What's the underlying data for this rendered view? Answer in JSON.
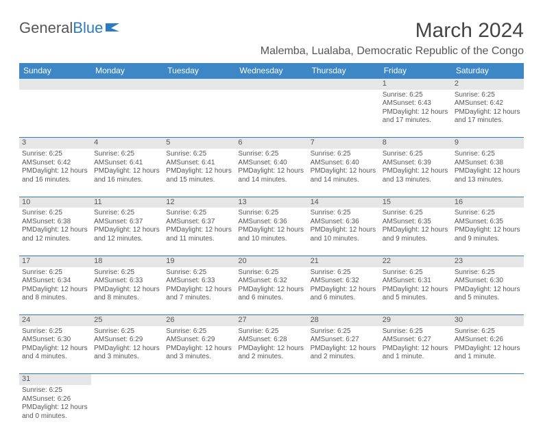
{
  "brand": {
    "part1": "General",
    "part2": "Blue"
  },
  "title": "March 2024",
  "location": "Malemba, Lualaba, Democratic Republic of the Congo",
  "weekdays": [
    "Sunday",
    "Monday",
    "Tuesday",
    "Wednesday",
    "Thursday",
    "Friday",
    "Saturday"
  ],
  "colors": {
    "header_bg": "#3d87c6",
    "header_fg": "#ffffff",
    "daynum_bg": "#e6e6e6",
    "border": "#2b7bbd",
    "text": "#555555",
    "brand_blue": "#2b7bbd"
  },
  "rows": [
    [
      null,
      null,
      null,
      null,
      null,
      {
        "n": "1",
        "sr": "6:25 AM",
        "ss": "6:43 PM",
        "dl": "12 hours and 17 minutes."
      },
      {
        "n": "2",
        "sr": "6:25 AM",
        "ss": "6:42 PM",
        "dl": "12 hours and 17 minutes."
      }
    ],
    [
      {
        "n": "3",
        "sr": "6:25 AM",
        "ss": "6:42 PM",
        "dl": "12 hours and 16 minutes."
      },
      {
        "n": "4",
        "sr": "6:25 AM",
        "ss": "6:41 PM",
        "dl": "12 hours and 16 minutes."
      },
      {
        "n": "5",
        "sr": "6:25 AM",
        "ss": "6:41 PM",
        "dl": "12 hours and 15 minutes."
      },
      {
        "n": "6",
        "sr": "6:25 AM",
        "ss": "6:40 PM",
        "dl": "12 hours and 14 minutes."
      },
      {
        "n": "7",
        "sr": "6:25 AM",
        "ss": "6:40 PM",
        "dl": "12 hours and 14 minutes."
      },
      {
        "n": "8",
        "sr": "6:25 AM",
        "ss": "6:39 PM",
        "dl": "12 hours and 13 minutes."
      },
      {
        "n": "9",
        "sr": "6:25 AM",
        "ss": "6:38 PM",
        "dl": "12 hours and 13 minutes."
      }
    ],
    [
      {
        "n": "10",
        "sr": "6:25 AM",
        "ss": "6:38 PM",
        "dl": "12 hours and 12 minutes."
      },
      {
        "n": "11",
        "sr": "6:25 AM",
        "ss": "6:37 PM",
        "dl": "12 hours and 12 minutes."
      },
      {
        "n": "12",
        "sr": "6:25 AM",
        "ss": "6:37 PM",
        "dl": "12 hours and 11 minutes."
      },
      {
        "n": "13",
        "sr": "6:25 AM",
        "ss": "6:36 PM",
        "dl": "12 hours and 10 minutes."
      },
      {
        "n": "14",
        "sr": "6:25 AM",
        "ss": "6:36 PM",
        "dl": "12 hours and 10 minutes."
      },
      {
        "n": "15",
        "sr": "6:25 AM",
        "ss": "6:35 PM",
        "dl": "12 hours and 9 minutes."
      },
      {
        "n": "16",
        "sr": "6:25 AM",
        "ss": "6:35 PM",
        "dl": "12 hours and 9 minutes."
      }
    ],
    [
      {
        "n": "17",
        "sr": "6:25 AM",
        "ss": "6:34 PM",
        "dl": "12 hours and 8 minutes."
      },
      {
        "n": "18",
        "sr": "6:25 AM",
        "ss": "6:33 PM",
        "dl": "12 hours and 8 minutes."
      },
      {
        "n": "19",
        "sr": "6:25 AM",
        "ss": "6:33 PM",
        "dl": "12 hours and 7 minutes."
      },
      {
        "n": "20",
        "sr": "6:25 AM",
        "ss": "6:32 PM",
        "dl": "12 hours and 6 minutes."
      },
      {
        "n": "21",
        "sr": "6:25 AM",
        "ss": "6:32 PM",
        "dl": "12 hours and 6 minutes."
      },
      {
        "n": "22",
        "sr": "6:25 AM",
        "ss": "6:31 PM",
        "dl": "12 hours and 5 minutes."
      },
      {
        "n": "23",
        "sr": "6:25 AM",
        "ss": "6:30 PM",
        "dl": "12 hours and 5 minutes."
      }
    ],
    [
      {
        "n": "24",
        "sr": "6:25 AM",
        "ss": "6:30 PM",
        "dl": "12 hours and 4 minutes."
      },
      {
        "n": "25",
        "sr": "6:25 AM",
        "ss": "6:29 PM",
        "dl": "12 hours and 3 minutes."
      },
      {
        "n": "26",
        "sr": "6:25 AM",
        "ss": "6:29 PM",
        "dl": "12 hours and 3 minutes."
      },
      {
        "n": "27",
        "sr": "6:25 AM",
        "ss": "6:28 PM",
        "dl": "12 hours and 2 minutes."
      },
      {
        "n": "28",
        "sr": "6:25 AM",
        "ss": "6:27 PM",
        "dl": "12 hours and 2 minutes."
      },
      {
        "n": "29",
        "sr": "6:25 AM",
        "ss": "6:27 PM",
        "dl": "12 hours and 1 minute."
      },
      {
        "n": "30",
        "sr": "6:25 AM",
        "ss": "6:26 PM",
        "dl": "12 hours and 1 minute."
      }
    ],
    [
      {
        "n": "31",
        "sr": "6:25 AM",
        "ss": "6:26 PM",
        "dl": "12 hours and 0 minutes."
      },
      null,
      null,
      null,
      null,
      null,
      null
    ]
  ],
  "labels": {
    "sunrise": "Sunrise:",
    "sunset": "Sunset:",
    "daylight": "Daylight:"
  }
}
